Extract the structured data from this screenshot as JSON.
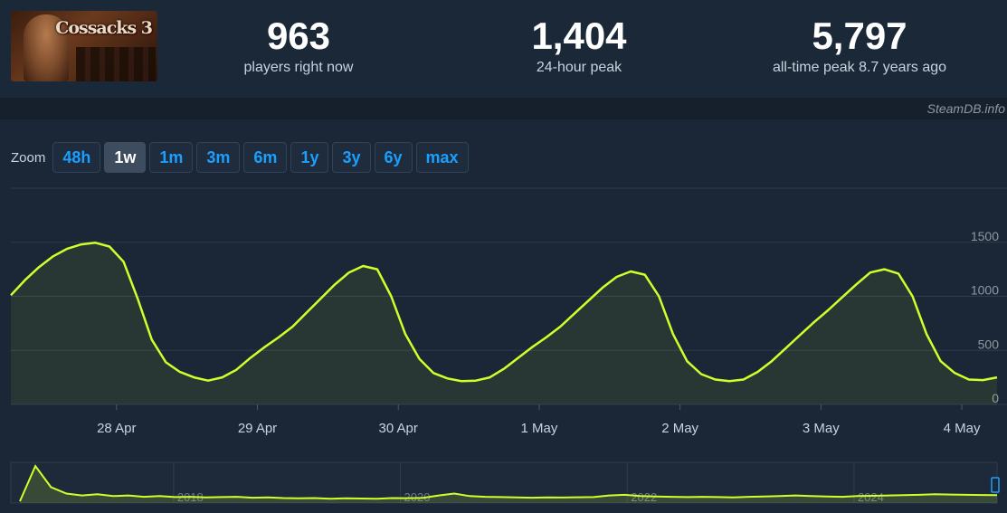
{
  "game": {
    "logo_text": "Cossacks 3"
  },
  "stats": [
    {
      "value": "963",
      "label": "players right now"
    },
    {
      "value": "1,404",
      "label": "24-hour peak"
    },
    {
      "value": "5,797",
      "label": "all-time peak 8.7 years ago"
    }
  ],
  "branding": "SteamDB.info",
  "zoom": {
    "label": "Zoom",
    "options": [
      "48h",
      "1w",
      "1m",
      "3m",
      "6m",
      "1y",
      "3y",
      "6y",
      "max"
    ],
    "active": "1w"
  },
  "colors": {
    "line": "#d2ff2b",
    "background": "#1b2636",
    "grid": "#2e3c4f",
    "button_active": "#3d4c5e",
    "button_text": "#1a9fff"
  },
  "chart_data": {
    "type": "line",
    "series": [
      {
        "x": [
          0,
          0.1,
          0.2,
          0.3,
          0.4,
          0.5,
          0.6,
          0.7,
          0.8,
          0.9,
          1,
          1.1,
          1.2,
          1.3,
          1.4,
          1.5,
          1.6,
          1.7,
          1.8,
          1.9,
          2,
          2.1,
          2.2,
          2.3,
          2.4,
          2.5,
          2.6,
          2.7,
          2.8,
          2.9,
          3,
          3.1,
          3.2,
          3.3,
          3.4,
          3.5,
          3.6,
          3.7,
          3.8,
          3.9,
          4,
          4.1,
          4.2,
          4.3,
          4.4,
          4.5,
          4.6,
          4.7,
          4.8,
          4.9,
          5,
          5.1,
          5.2,
          5.3,
          5.4,
          5.5,
          5.6,
          5.7,
          5.8,
          5.9,
          6,
          6.1,
          6.2,
          6.3,
          6.4,
          6.5,
          6.6,
          6.7,
          6.8,
          6.9,
          7
        ],
        "y": [
          1010,
          1150,
          1270,
          1370,
          1440,
          1480,
          1495,
          1460,
          1320,
          980,
          600,
          390,
          300,
          250,
          220,
          250,
          320,
          430,
          530,
          620,
          720,
          850,
          980,
          1110,
          1220,
          1280,
          1250,
          1000,
          650,
          420,
          290,
          240,
          215,
          220,
          250,
          330,
          430,
          530,
          620,
          720,
          840,
          960,
          1080,
          1180,
          1230,
          1200,
          1000,
          650,
          400,
          280,
          230,
          215,
          230,
          300,
          400,
          520,
          640,
          760,
          870,
          990,
          1110,
          1220,
          1250,
          1210,
          1000,
          650,
          400,
          290,
          230,
          225,
          250
        ]
      }
    ],
    "x_ticks": [
      {
        "v": 0.75,
        "label": "28 Apr"
      },
      {
        "v": 1.75,
        "label": "29 Apr"
      },
      {
        "v": 2.75,
        "label": "30 Apr"
      },
      {
        "v": 3.75,
        "label": "1 May"
      },
      {
        "v": 4.75,
        "label": "2 May"
      },
      {
        "v": 5.75,
        "label": "3 May"
      },
      {
        "v": 6.75,
        "label": "4 May"
      }
    ],
    "y_ticks": [
      0,
      500,
      1000,
      1500
    ],
    "ylim": [
      0,
      2000
    ],
    "grid": true,
    "navigator": {
      "labels": [
        "2018",
        "2020",
        "2022",
        "2024"
      ],
      "values": [
        0,
        5500,
        2200,
        1200,
        900,
        1100,
        800,
        900,
        700,
        800,
        650,
        700,
        600,
        650,
        700,
        550,
        600,
        500,
        450,
        500,
        400,
        450,
        420,
        380,
        500,
        480,
        520,
        900,
        1200,
        800,
        700,
        650,
        600,
        550,
        600,
        580,
        620,
        650,
        900,
        1000,
        800,
        750,
        700,
        650,
        700,
        650,
        600,
        700,
        750,
        800,
        900,
        800,
        750,
        700,
        800,
        850,
        900,
        950,
        1000,
        1100,
        1050,
        1000,
        980,
        960
      ]
    }
  }
}
